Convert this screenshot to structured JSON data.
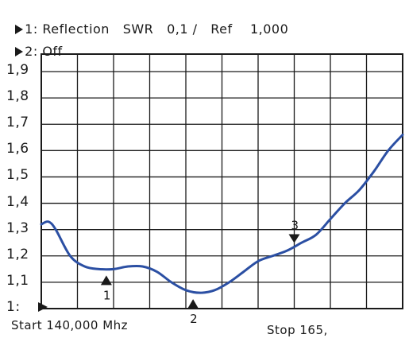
{
  "header": {
    "trace1_label": "1: Reflection",
    "trace1_format": "SWR",
    "trace1_scale": "0,1 /",
    "trace1_ref_label": "Ref",
    "trace1_ref_value": "1,000",
    "trace2_label": "2: Off"
  },
  "footer": {
    "start_label": "Start 140,000 Mhz",
    "stop_label": "Stop 165, "
  },
  "chart_data": {
    "type": "line",
    "x_unit": "MHz",
    "xlim": [
      140.0,
      165.0
    ],
    "ylim": [
      1.0,
      1.9
    ],
    "y_tick_labels": [
      "1:",
      "1,1",
      "1,2",
      "1,3",
      "1,4",
      "1,5",
      "1,6",
      "1,7",
      "1,8",
      "1,9"
    ],
    "y_tick_values": [
      1.0,
      1.1,
      1.2,
      1.3,
      1.4,
      1.5,
      1.6,
      1.7,
      1.8,
      1.9
    ],
    "grid": true,
    "x_divisions": 10,
    "series": [
      {
        "x": [
          140.0,
          140.5,
          141.0,
          142.0,
          143.0,
          144.0,
          145.0,
          146.0,
          147.0,
          148.0,
          149.0,
          150.0,
          151.0,
          152.0,
          153.0,
          154.0,
          155.0,
          156.0,
          157.0,
          158.0,
          159.0,
          160.0,
          161.0,
          162.0,
          163.0,
          164.0,
          165.0
        ],
        "values": [
          1.32,
          1.33,
          1.3,
          1.2,
          1.16,
          1.15,
          1.15,
          1.16,
          1.16,
          1.14,
          1.1,
          1.07,
          1.06,
          1.07,
          1.1,
          1.14,
          1.18,
          1.2,
          1.22,
          1.25,
          1.28,
          1.34,
          1.4,
          1.45,
          1.52,
          1.6,
          1.66
        ]
      }
    ],
    "markers": [
      {
        "label": "1",
        "x": 144.5,
        "y": 1.15,
        "direction": "up"
      },
      {
        "label": "2",
        "x": 150.5,
        "y": 1.06,
        "direction": "up"
      },
      {
        "label": "3",
        "x": 157.5,
        "y": 1.24,
        "direction": "down"
      }
    ],
    "colors": {
      "trace": "#2b4fa3",
      "grid": "#1a1a1a"
    }
  }
}
